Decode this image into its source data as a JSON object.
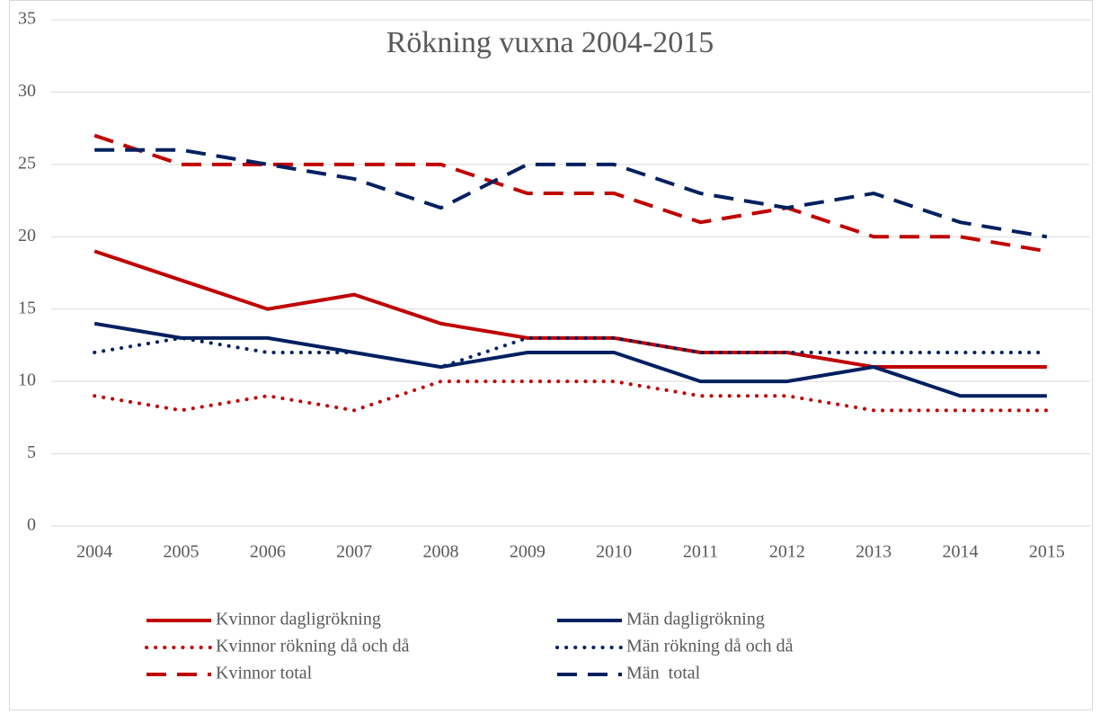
{
  "chart_data": {
    "type": "line",
    "title": "Rökning vuxna 2004-2015",
    "categories": [
      "2004",
      "2005",
      "2006",
      "2007",
      "2008",
      "2009",
      "2010",
      "2011",
      "2012",
      "2013",
      "2014",
      "2015"
    ],
    "series": [
      {
        "name": "Kvinnor dagligrökning",
        "color": "#c00000",
        "line_style": "solid",
        "values": [
          19,
          17,
          15,
          16,
          14,
          13,
          13,
          12,
          12,
          11,
          11,
          11
        ]
      },
      {
        "name": "Män dagligrökning",
        "color": "#002060",
        "line_style": "solid",
        "values": [
          14,
          13,
          13,
          12,
          11,
          12,
          12,
          10,
          10,
          11,
          9,
          9
        ]
      },
      {
        "name": "Kvinnor rökning då och då",
        "color": "#c00000",
        "line_style": "dotted",
        "values": [
          9,
          8,
          9,
          8,
          10,
          10,
          10,
          9,
          9,
          8,
          8,
          8
        ]
      },
      {
        "name": "Män rökning då och då",
        "color": "#002060",
        "line_style": "dotted",
        "values": [
          12,
          13,
          12,
          12,
          11,
          13,
          13,
          12,
          12,
          12,
          12,
          12
        ]
      },
      {
        "name": "Kvinnor total",
        "color": "#c00000",
        "line_style": "dashed",
        "values": [
          27,
          25,
          25,
          25,
          25,
          23,
          23,
          21,
          22,
          20,
          20,
          19
        ]
      },
      {
        "name": "Män  total",
        "color": "#002060",
        "line_style": "dashed",
        "values": [
          26,
          26,
          25,
          24,
          22,
          25,
          25,
          23,
          22,
          23,
          21,
          20
        ]
      }
    ],
    "ylim": [
      0,
      35
    ],
    "yticks": [
      0,
      5,
      10,
      15,
      20,
      25,
      30,
      35
    ],
    "grid": true,
    "legend": "bottom"
  }
}
